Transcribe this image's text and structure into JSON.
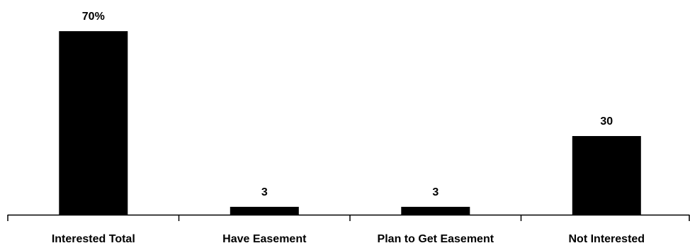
{
  "chart_data": {
    "type": "bar",
    "title": "",
    "xlabel": "",
    "ylabel": "",
    "categories": [
      "Interested Total",
      "Have Easement",
      "Plan to Get Easement",
      "Not Interested"
    ],
    "values": [
      70,
      3,
      3,
      30
    ],
    "data_labels": [
      "70%",
      "3",
      "3",
      "30"
    ],
    "ylim": [
      0,
      70
    ],
    "grid": false,
    "legend": "none",
    "bar_color": "#000000",
    "axis_color": "#000000"
  }
}
